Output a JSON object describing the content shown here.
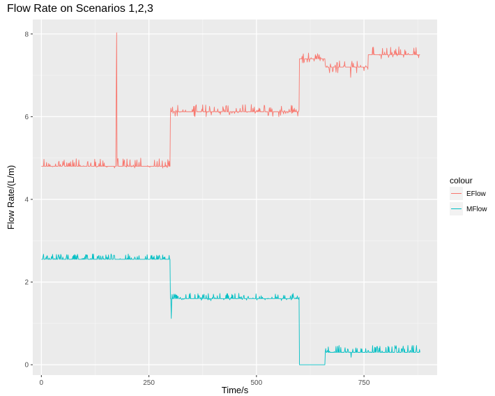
{
  "chart_data": {
    "type": "line",
    "title": "Flow Rate on Scenarios 1,2,3",
    "xlabel": "Time/s",
    "ylabel": "Flow Rate/(L/m)",
    "xlim": [
      -20,
      920
    ],
    "ylim": [
      -0.25,
      8.35
    ],
    "x_ticks": [
      0,
      250,
      500,
      750
    ],
    "y_ticks": [
      0,
      2,
      4,
      6,
      8
    ],
    "x_tick_labels": [
      "0",
      "250",
      "500",
      "750"
    ],
    "y_tick_labels": [
      "0",
      "2",
      "4",
      "6",
      "8"
    ],
    "grid": true,
    "legend": {
      "title": "colour",
      "position": "right"
    },
    "series": [
      {
        "name": "EFlow",
        "color": "#F8766D",
        "segments": [
          {
            "x_start": 0,
            "x_end": 300,
            "base": 4.8,
            "jitter": [
              4.75,
              5.0
            ]
          },
          {
            "x_start": 300,
            "x_end": 600,
            "base": 6.12,
            "jitter": [
              6.0,
              6.3
            ]
          },
          {
            "x_start": 600,
            "x_end": 660,
            "base": 7.4,
            "jitter": [
              7.3,
              7.6
            ]
          },
          {
            "x_start": 660,
            "x_end": 760,
            "base": 7.2,
            "jitter": [
              7.05,
              7.35
            ]
          },
          {
            "x_start": 760,
            "x_end": 880,
            "base": 7.5,
            "jitter": [
              7.4,
              7.7
            ]
          }
        ],
        "spikes": [
          {
            "x": 175,
            "y": 8.03
          },
          {
            "x": 174,
            "y": 6.45
          },
          {
            "x": 719,
            "y": 6.95
          }
        ]
      },
      {
        "name": "MFlow",
        "color": "#00BFC4",
        "segments": [
          {
            "x_start": 0,
            "x_end": 300,
            "base": 2.55,
            "jitter": [
              2.55,
              2.68
            ]
          },
          {
            "x_start": 300,
            "x_end": 600,
            "base": 1.6,
            "jitter": [
              1.55,
              1.73
            ]
          },
          {
            "x_start": 600,
            "x_end": 660,
            "base": 0.0,
            "jitter": [
              0.0,
              0.0
            ]
          },
          {
            "x_start": 660,
            "x_end": 880,
            "base": 0.3,
            "jitter": [
              0.3,
              0.47
            ]
          }
        ],
        "spikes": [
          {
            "x": 302,
            "y": 1.12
          },
          {
            "x": 720,
            "y": 0.18
          }
        ]
      }
    ]
  }
}
